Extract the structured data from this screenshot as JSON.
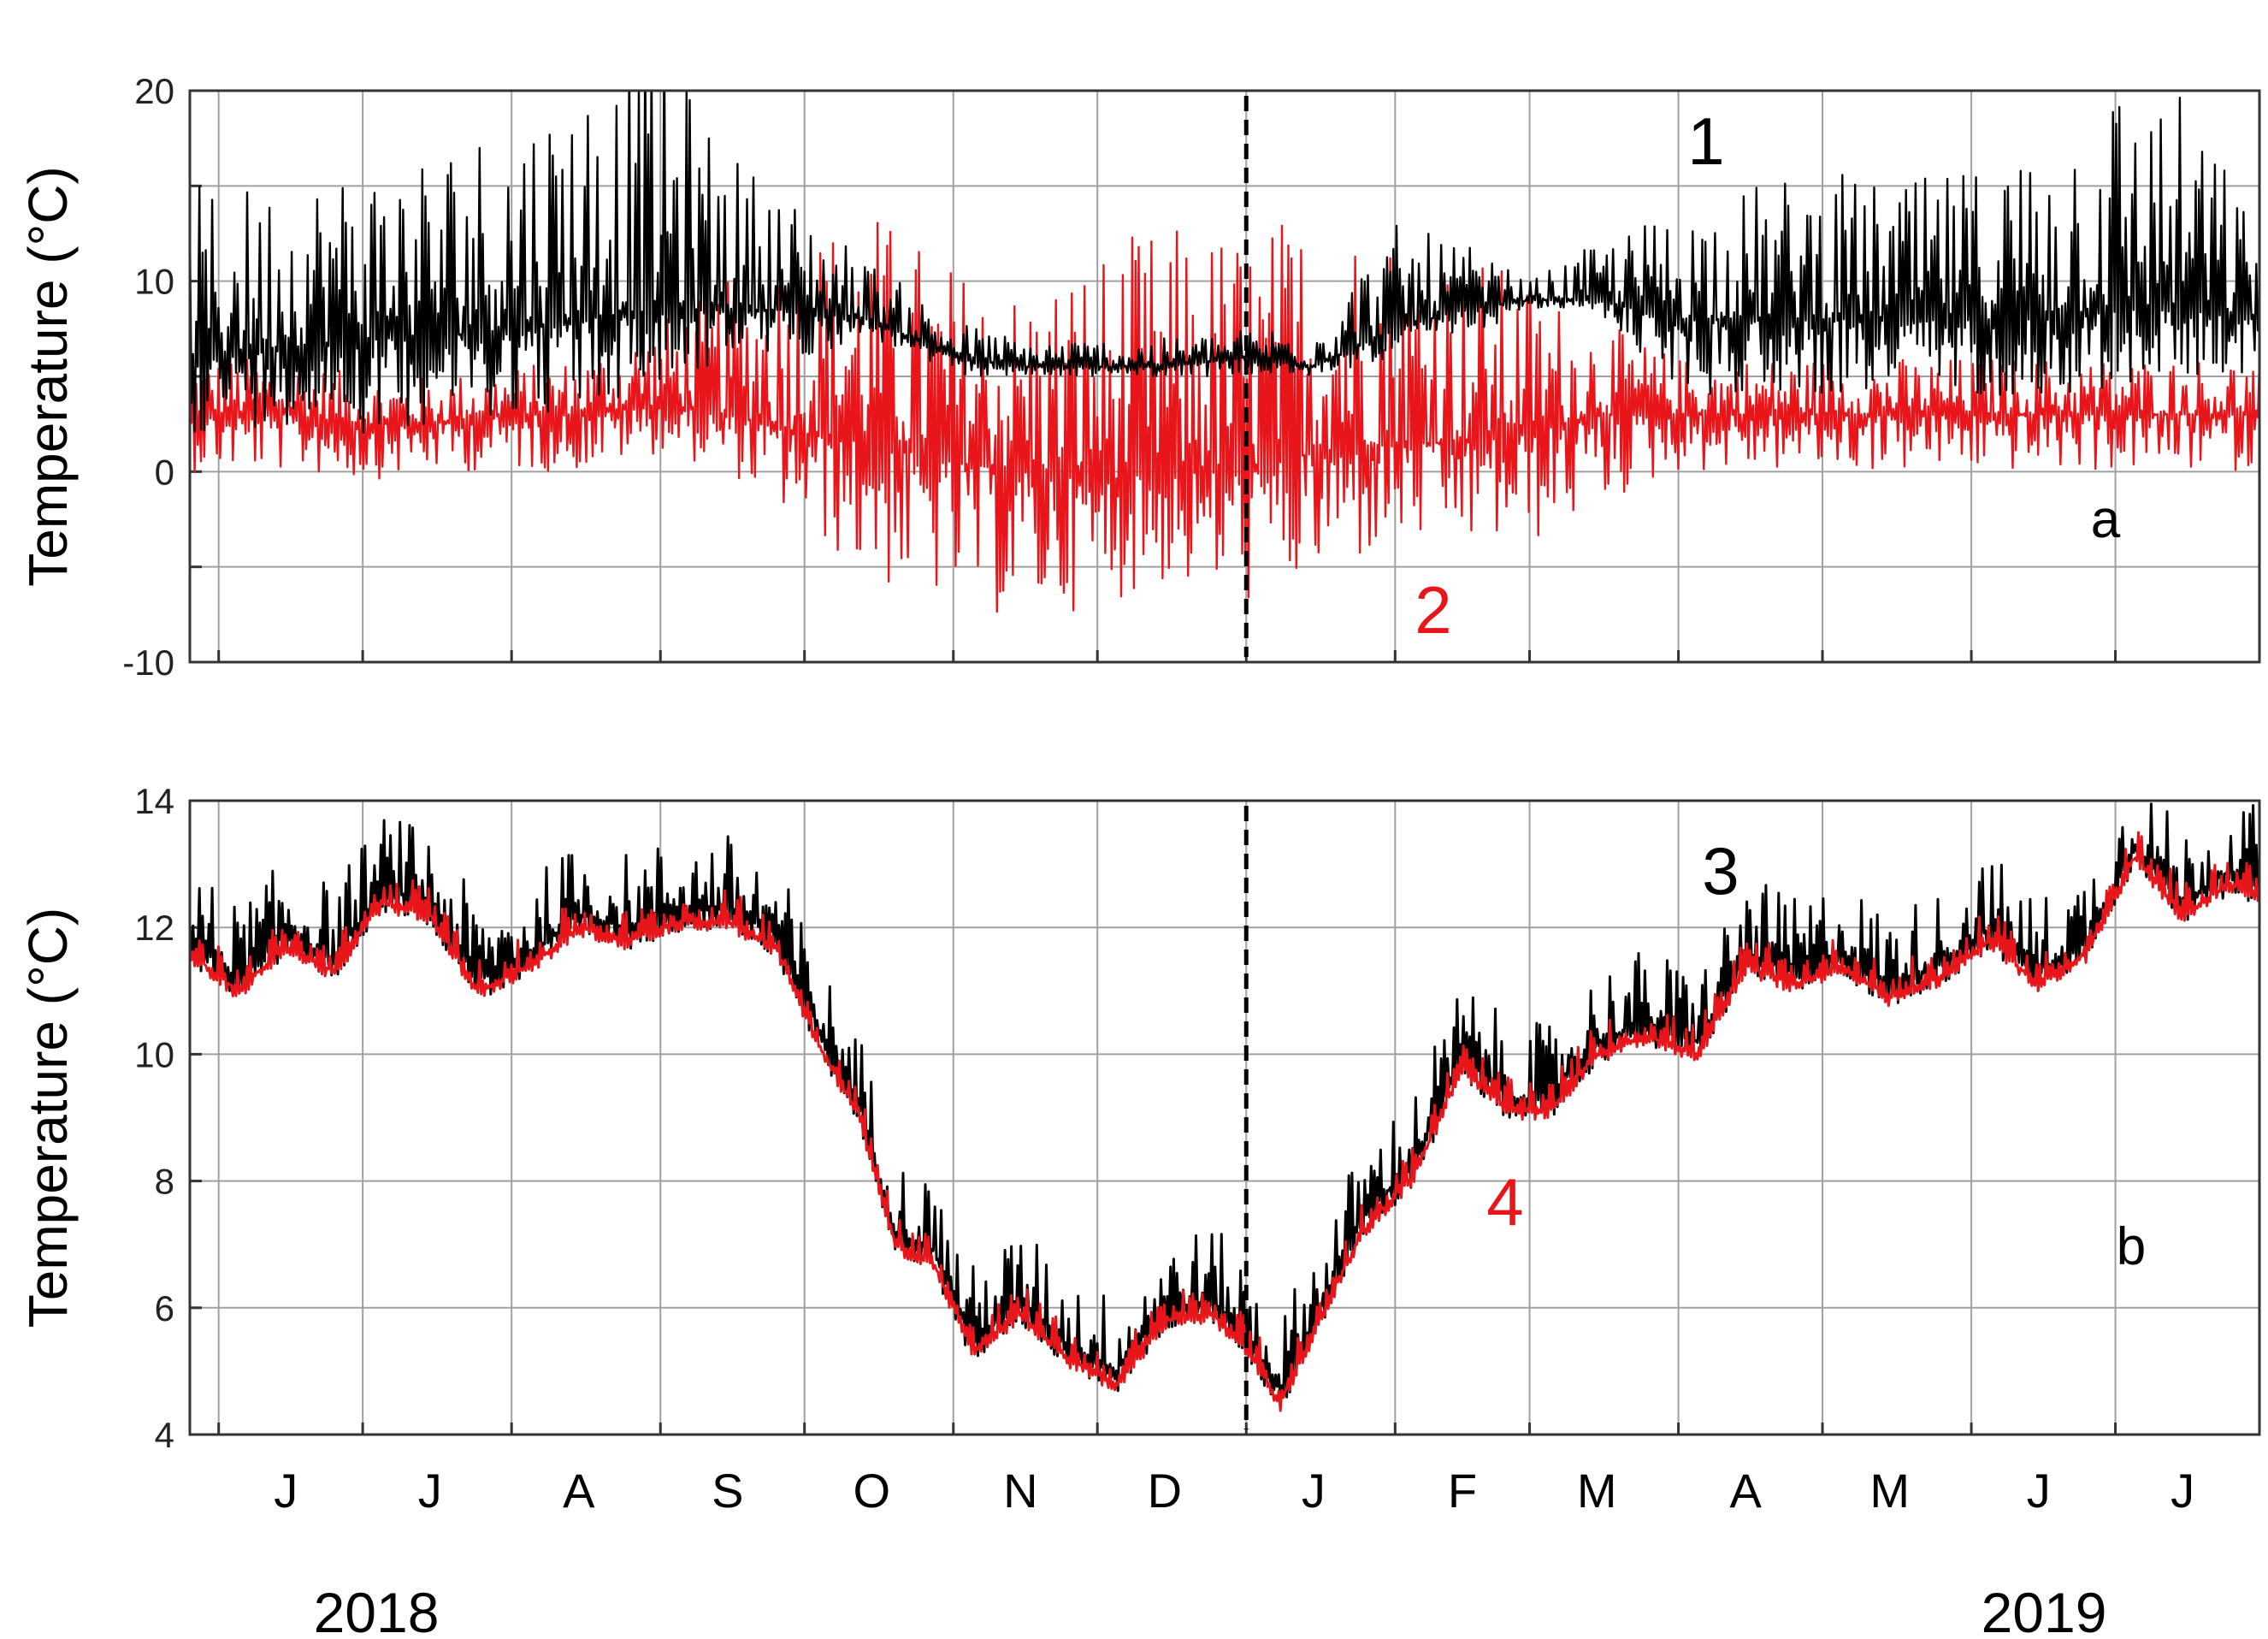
{
  "chart_data": [
    {
      "type": "line",
      "panel": "a",
      "ylabel": "Temperature (°C)",
      "ylim": [
        -10,
        20
      ],
      "yticks": [
        -10,
        0,
        10,
        20
      ],
      "grid": true,
      "xlim": [
        "2018-05-26",
        "2019-07-31"
      ],
      "series_labels": [
        {
          "text": "1",
          "color": "#000000"
        },
        {
          "text": "2",
          "color": "#e8161b"
        }
      ],
      "series": [
        {
          "label": "1",
          "color": "#000000",
          "x": [
            "2018-06-01",
            "2018-06-15",
            "2018-07-01",
            "2018-07-15",
            "2018-08-01",
            "2018-08-15",
            "2018-09-01",
            "2018-09-15",
            "2018-10-01",
            "2018-10-15",
            "2018-11-01",
            "2018-11-15",
            "2018-12-01",
            "2018-12-15",
            "2019-01-01",
            "2019-01-15",
            "2019-02-01",
            "2019-02-15",
            "2019-03-01",
            "2019-03-15",
            "2019-04-01",
            "2019-04-15",
            "2019-05-01",
            "2019-05-15",
            "2019-06-01",
            "2019-06-15",
            "2019-07-01",
            "2019-07-15",
            "2019-07-31"
          ],
          "mean": [
            6,
            6.5,
            7,
            7,
            7.5,
            8,
            8.5,
            8.5,
            8.5,
            8,
            6,
            5.5,
            5.5,
            5.5,
            6,
            5.5,
            7.5,
            8.5,
            9,
            9,
            8,
            8,
            8,
            8,
            8,
            8,
            8.5,
            8.5,
            8
          ],
          "low": [
            2,
            2.5,
            2,
            2.5,
            3,
            3,
            4,
            6,
            6,
            7,
            5,
            5,
            5,
            5,
            5,
            5,
            6,
            7,
            8.5,
            8.5,
            4,
            4,
            4,
            4,
            4,
            4,
            4,
            5,
            5
          ],
          "high": [
            15,
            15.5,
            16.5,
            17.5,
            19,
            21,
            23,
            17,
            14,
            11,
            8,
            7,
            7,
            7,
            7.5,
            8,
            13,
            12,
            10,
            12,
            14,
            15,
            16,
            15,
            16,
            18,
            21,
            20,
            13
          ]
        },
        {
          "label": "2",
          "color": "#e8161b",
          "x": [
            "2018-06-01",
            "2018-06-15",
            "2018-07-01",
            "2018-07-15",
            "2018-08-01",
            "2018-08-15",
            "2018-09-01",
            "2018-09-15",
            "2018-10-01",
            "2018-10-15",
            "2018-11-01",
            "2018-11-15",
            "2018-12-01",
            "2018-12-15",
            "2019-01-01",
            "2019-01-15",
            "2019-02-01",
            "2019-02-15",
            "2019-03-01",
            "2019-03-15",
            "2019-04-01",
            "2019-04-15",
            "2019-05-01",
            "2019-05-15",
            "2019-06-01",
            "2019-06-15",
            "2019-07-01",
            "2019-07-15",
            "2019-07-31"
          ],
          "mean": [
            3,
            3,
            2.5,
            2.5,
            3,
            3,
            3.5,
            3,
            2,
            1.5,
            0.5,
            0,
            -0.5,
            0,
            0,
            1,
            1.5,
            1.5,
            2,
            3,
            3,
            3,
            3,
            3,
            3,
            3,
            3,
            3,
            3
          ],
          "low": [
            0,
            0,
            -0.5,
            0,
            0,
            0,
            1,
            0,
            -3,
            -6,
            -7,
            -8,
            -7,
            -6,
            -7,
            -6,
            -4,
            -4,
            -4,
            -2,
            0,
            0,
            0,
            0,
            0,
            0,
            0,
            0,
            0
          ],
          "high": [
            6,
            6,
            5,
            5,
            5.5,
            6,
            8,
            10,
            13,
            14,
            11,
            10,
            12,
            13,
            13,
            14,
            13,
            12,
            10,
            8,
            6,
            6,
            6,
            6,
            6,
            6,
            6,
            6,
            6
          ]
        }
      ]
    },
    {
      "type": "line",
      "panel": "b",
      "ylabel": "Temperature (°C)",
      "ylim": [
        4,
        14
      ],
      "yticks": [
        4,
        6,
        8,
        10,
        12,
        14
      ],
      "grid": true,
      "xlim": [
        "2018-05-26",
        "2019-07-31"
      ],
      "series_labels": [
        {
          "text": "3",
          "color": "#000000"
        },
        {
          "text": "4",
          "color": "#e8161b"
        }
      ],
      "series": [
        {
          "label": "3",
          "color": "#000000",
          "x": [
            "2018-05-26",
            "2018-06-05",
            "2018-06-15",
            "2018-06-25",
            "2018-07-05",
            "2018-07-15",
            "2018-07-25",
            "2018-08-05",
            "2018-08-15",
            "2018-08-25",
            "2018-09-05",
            "2018-09-15",
            "2018-09-25",
            "2018-10-05",
            "2018-10-12",
            "2018-10-20",
            "2018-10-28",
            "2018-11-05",
            "2018-11-15",
            "2018-11-25",
            "2018-12-05",
            "2018-12-15",
            "2018-12-25",
            "2019-01-01",
            "2019-01-08",
            "2019-01-15",
            "2019-01-25",
            "2019-02-05",
            "2019-02-15",
            "2019-02-25",
            "2019-03-05",
            "2019-03-15",
            "2019-03-25",
            "2019-04-05",
            "2019-04-15",
            "2019-04-25",
            "2019-05-05",
            "2019-05-15",
            "2019-05-25",
            "2019-06-05",
            "2019-06-15",
            "2019-06-25",
            "2019-07-05",
            "2019-07-15",
            "2019-07-25",
            "2019-07-31"
          ],
          "values": [
            11.8,
            11.2,
            11.9,
            11.5,
            12.6,
            12.4,
            11.2,
            11.6,
            12.2,
            12.0,
            12.3,
            12.3,
            11.9,
            10.2,
            9.3,
            7.2,
            6.9,
            5.5,
            6.1,
            5.4,
            5.0,
            6.0,
            6.1,
            5.6,
            4.7,
            5.8,
            7.4,
            8.3,
            10.0,
            9.3,
            9.3,
            10.2,
            10.5,
            10.2,
            11.6,
            11.3,
            11.6,
            11.1,
            11.4,
            12.0,
            11.3,
            11.8,
            13.3,
            12.4,
            12.9,
            12.7
          ],
          "spike": 0.6
        },
        {
          "label": "4",
          "color": "#e8161b",
          "x": [
            "2018-05-26",
            "2018-06-05",
            "2018-06-15",
            "2018-06-25",
            "2018-07-05",
            "2018-07-15",
            "2018-07-25",
            "2018-08-05",
            "2018-08-15",
            "2018-08-25",
            "2018-09-05",
            "2018-09-15",
            "2018-09-25",
            "2018-10-05",
            "2018-10-12",
            "2018-10-20",
            "2018-10-28",
            "2018-11-05",
            "2018-11-15",
            "2018-11-25",
            "2018-12-05",
            "2018-12-15",
            "2018-12-25",
            "2019-01-01",
            "2019-01-08",
            "2019-01-15",
            "2019-01-25",
            "2019-02-05",
            "2019-02-15",
            "2019-02-25",
            "2019-03-05",
            "2019-03-15",
            "2019-03-25",
            "2019-04-05",
            "2019-04-15",
            "2019-04-25",
            "2019-05-05",
            "2019-05-15",
            "2019-05-25",
            "2019-06-05",
            "2019-06-15",
            "2019-06-25",
            "2019-07-05",
            "2019-07-15",
            "2019-07-25",
            "2019-07-31"
          ],
          "values": [
            11.6,
            11.0,
            11.7,
            11.3,
            12.4,
            12.2,
            11.0,
            11.4,
            12.0,
            11.8,
            12.1,
            12.1,
            11.7,
            10.0,
            9.1,
            7.0,
            6.7,
            5.3,
            5.9,
            5.2,
            4.8,
            5.8,
            5.9,
            5.4,
            4.5,
            5.6,
            7.2,
            8.1,
            9.8,
            9.1,
            9.1,
            10.0,
            10.3,
            10.0,
            11.4,
            11.1,
            11.4,
            10.9,
            11.2,
            11.8,
            11.1,
            11.6,
            13.1,
            12.2,
            12.7,
            12.5
          ],
          "spike": 0.25
        }
      ]
    }
  ],
  "x_tick_labels": [
    "J",
    "J",
    "A",
    "S",
    "O",
    "N",
    "D",
    "J",
    "F",
    "M",
    "A",
    "M",
    "J",
    "J"
  ],
  "year_labels": [
    "2018",
    "2019"
  ],
  "year_boundary": "2019-01-01",
  "axes_color": "#333333",
  "grid_color": "#a0a0a0",
  "font": "sans-serif"
}
